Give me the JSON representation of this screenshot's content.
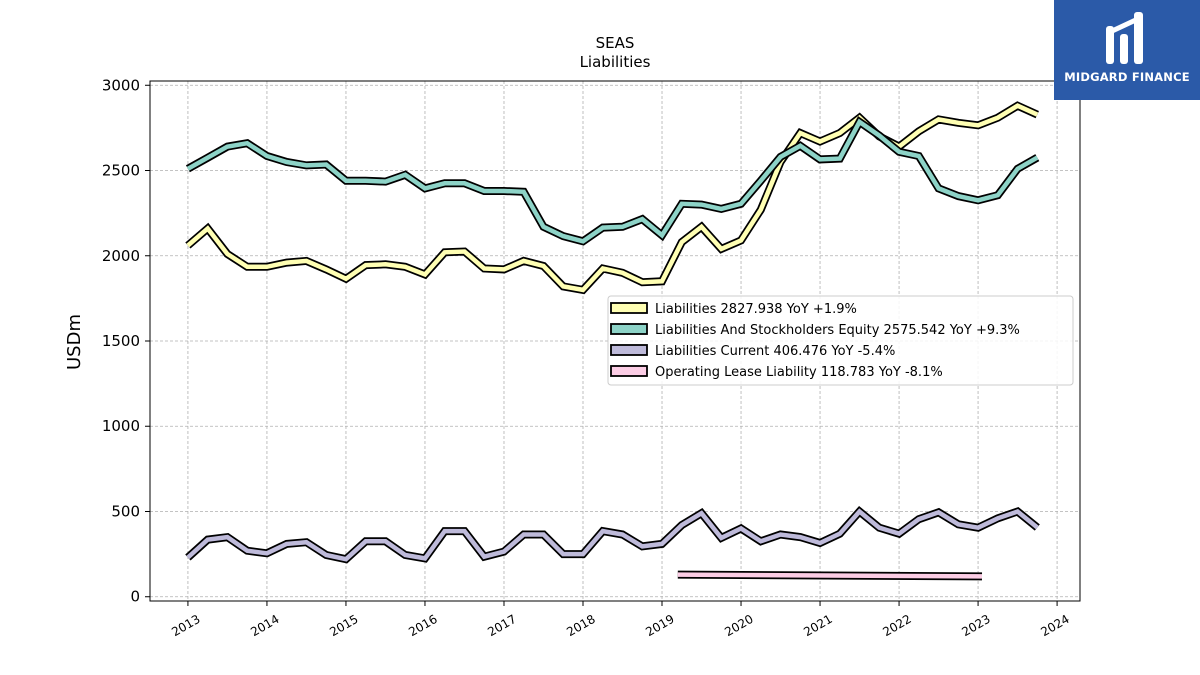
{
  "brand": {
    "name": "MIDGARD FINANCE",
    "bg_color": "#2b5aa8"
  },
  "chart_data": {
    "type": "line",
    "title": "SEAS",
    "subtitle": "Liabilities",
    "xlabel": "",
    "ylabel": "USDm",
    "x_tick_labels": [
      "2013",
      "2014",
      "2015",
      "2016",
      "2017",
      "2018",
      "2019",
      "2020",
      "2021",
      "2022",
      "2023",
      "2024"
    ],
    "y_tick_labels": [
      "0",
      "500",
      "1000",
      "1500",
      "2000",
      "2500",
      "3000"
    ],
    "xlim": [
      2012.52,
      2024.29
    ],
    "ylim": [
      -25,
      3025
    ],
    "grid": true,
    "legend_placement": "center-right",
    "series": [
      {
        "name": "Liabilities",
        "legend_label": "Liabilities  2827.938 YoY +1.9%",
        "color": "#ffffb3",
        "x": [
          2013.0,
          2013.25,
          2013.5,
          2013.75,
          2014.0,
          2014.25,
          2014.5,
          2014.75,
          2015.0,
          2015.25,
          2015.5,
          2015.75,
          2016.0,
          2016.25,
          2016.5,
          2016.75,
          2017.0,
          2017.25,
          2017.5,
          2017.75,
          2018.0,
          2018.25,
          2018.5,
          2018.75,
          2019.0,
          2019.25,
          2019.5,
          2019.75,
          2020.0,
          2020.25,
          2020.5,
          2020.75,
          2021.0,
          2021.25,
          2021.5,
          2021.75,
          2022.0,
          2022.25,
          2022.5,
          2022.75,
          2023.0,
          2023.25,
          2023.5,
          2023.75
        ],
        "values": [
          2060,
          2160,
          2010,
          1935,
          1935,
          1960,
          1970,
          1920,
          1865,
          1945,
          1950,
          1935,
          1890,
          2020,
          2025,
          1925,
          1920,
          1970,
          1940,
          1820,
          1800,
          1925,
          1900,
          1845,
          1850,
          2080,
          2170,
          2040,
          2090,
          2270,
          2550,
          2720,
          2670,
          2720,
          2810,
          2700,
          2640,
          2730,
          2800,
          2780,
          2765,
          2810,
          2880,
          2828
        ]
      },
      {
        "name": "Liabilities And Stockholders Equity",
        "legend_label": "Liabilities And Stockholders Equity  2575.542 YoY +9.3%",
        "color": "#8dd3c7",
        "x": [
          2013.0,
          2013.25,
          2013.5,
          2013.75,
          2014.0,
          2014.25,
          2014.5,
          2014.75,
          2015.0,
          2015.25,
          2015.5,
          2015.75,
          2016.0,
          2016.25,
          2016.5,
          2016.75,
          2017.0,
          2017.25,
          2017.5,
          2017.75,
          2018.0,
          2018.25,
          2018.5,
          2018.75,
          2019.0,
          2019.25,
          2019.5,
          2019.75,
          2020.0,
          2020.25,
          2020.5,
          2020.75,
          2021.0,
          2021.25,
          2021.5,
          2021.75,
          2022.0,
          2022.25,
          2022.5,
          2022.75,
          2023.0,
          2023.25,
          2023.5,
          2023.75
        ],
        "values": [
          2510,
          2575,
          2640,
          2660,
          2585,
          2550,
          2530,
          2535,
          2440,
          2440,
          2435,
          2475,
          2395,
          2425,
          2425,
          2380,
          2380,
          2375,
          2170,
          2115,
          2085,
          2165,
          2170,
          2215,
          2120,
          2305,
          2300,
          2275,
          2305,
          2440,
          2580,
          2645,
          2565,
          2570,
          2785,
          2705,
          2610,
          2585,
          2395,
          2350,
          2325,
          2355,
          2510,
          2576
        ]
      },
      {
        "name": "Liabilities Current",
        "legend_label": "Liabilities Current  406.476 YoY -5.4%",
        "color": "#bebada",
        "x": [
          2013.0,
          2013.25,
          2013.5,
          2013.75,
          2014.0,
          2014.25,
          2014.5,
          2014.75,
          2015.0,
          2015.25,
          2015.5,
          2015.75,
          2016.0,
          2016.25,
          2016.5,
          2016.75,
          2017.0,
          2017.25,
          2017.5,
          2017.75,
          2018.0,
          2018.25,
          2018.5,
          2018.75,
          2019.0,
          2019.25,
          2019.5,
          2019.75,
          2020.0,
          2020.25,
          2020.5,
          2020.75,
          2021.0,
          2021.25,
          2021.5,
          2021.75,
          2022.0,
          2022.25,
          2022.5,
          2022.75,
          2023.0,
          2023.25,
          2023.5,
          2023.75
        ],
        "values": [
          230,
          335,
          350,
          270,
          255,
          310,
          320,
          245,
          220,
          325,
          325,
          245,
          225,
          385,
          385,
          235,
          265,
          365,
          365,
          250,
          250,
          385,
          365,
          295,
          310,
          420,
          490,
          345,
          400,
          325,
          365,
          350,
          315,
          370,
          500,
          405,
          370,
          455,
          495,
          425,
          405,
          460,
          500,
          406
        ]
      },
      {
        "name": "Operating Lease Liability",
        "legend_label": "Operating Lease Liability  118.783 YoY -8.1%",
        "color": "#fccde5",
        "x": [
          2019.2,
          2023.05
        ],
        "values": [
          130,
          119
        ]
      }
    ]
  }
}
